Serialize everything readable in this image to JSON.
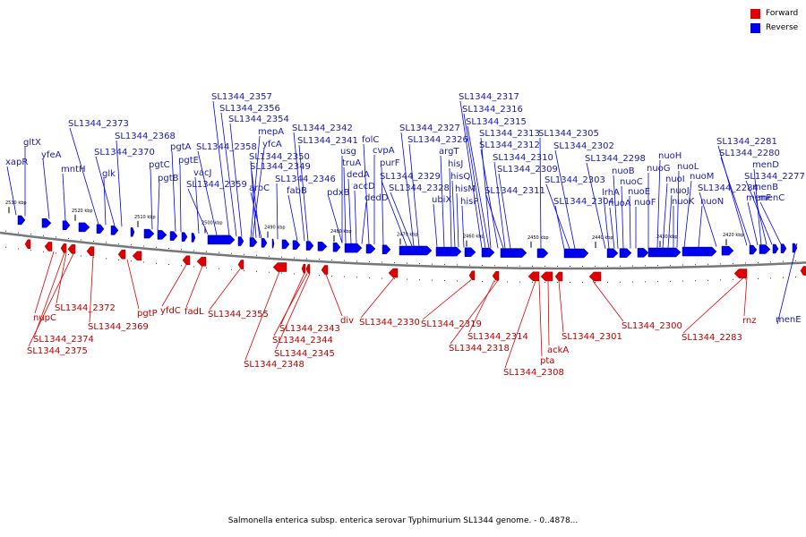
{
  "legend": {
    "forward_label": "Forward",
    "forward_color": "#e00000",
    "reverse_label": "Reverse",
    "reverse_color": "#0000f0"
  },
  "caption": "Salmonella enterica subsp. enterica serovar Typhimurium SL1344 genome. - 0..4878...",
  "axis": {
    "tick_labels": [
      "2530 kbp",
      "2520 kbp",
      "2510 kbp",
      "2500 kbp",
      "2490 kbp",
      "2480 kbp",
      "2470 kbp",
      "2460 kbp",
      "2450 kbp",
      "2440 kbp",
      "2430 kbp",
      "2420 kbp"
    ]
  },
  "reverse_genes": [
    "xapR",
    "gltX",
    "yfeA",
    "mntH",
    "SL1344_2373",
    "glk",
    "SL1344_2370",
    "SL1344_2368",
    "pgtC",
    "pgtB",
    "pgtA",
    "pgtE",
    "vacJ",
    "SL1344_2359",
    "SL1344_2358",
    "SL1344_2357",
    "SL1344_2356",
    "SL1344_2354",
    "mepA",
    "yfcA",
    "SL1344_2350",
    "SL1344_2349",
    "aroC",
    "SL1344_2346",
    "fabB",
    "SL1344_2342",
    "SL1344_2341",
    "usg",
    "pdxB",
    "truA",
    "dedA",
    "accD",
    "dedD",
    "folC",
    "cvpA",
    "purF",
    "SL1344_2329",
    "SL1344_2328",
    "SL1344_2327",
    "SL1344_2326",
    "ubiX",
    "argT",
    "hisJ",
    "hisQ",
    "hisM",
    "hisP",
    "SL1344_2317",
    "SL1344_2316",
    "SL1344_2315",
    "SL1344_2313",
    "SL1344_2312",
    "SL1344_2311",
    "SL1344_2310",
    "SL1344_2309",
    "SL1344_2305",
    "SL1344_2304",
    "SL1344_2303",
    "SL1344_2302",
    "SL1344_2298",
    "lrhA",
    "nuoA",
    "nuoB",
    "nuoC",
    "nuoE",
    "nuoF",
    "nuoG",
    "nuoH",
    "nuoI",
    "nuoJ",
    "nuoK",
    "nuoL",
    "nuoM",
    "nuoN",
    "SL1344_2284",
    "SL1344_2281",
    "SL1344_2280",
    "menF",
    "menD",
    "menB",
    "SL1344_2277",
    "menC",
    "menE"
  ],
  "forward_genes": [
    "nupC",
    "SL1344_2374",
    "SL1344_2375",
    "SL1344_2372",
    "SL1344_2369",
    "pgtP",
    "yfdC",
    "fadL",
    "SL1344_2355",
    "SL1344_2343",
    "SL1344_2344",
    "SL1344_2345",
    "SL1344_2348",
    "div",
    "SL1344_2330",
    "SL1344_2319",
    "SL1344_2314",
    "SL1344_2318",
    "pta",
    "ackA",
    "SL1344_2308",
    "SL1344_2301",
    "SL1344_2300",
    "SL1344_2283",
    "rnz"
  ]
}
